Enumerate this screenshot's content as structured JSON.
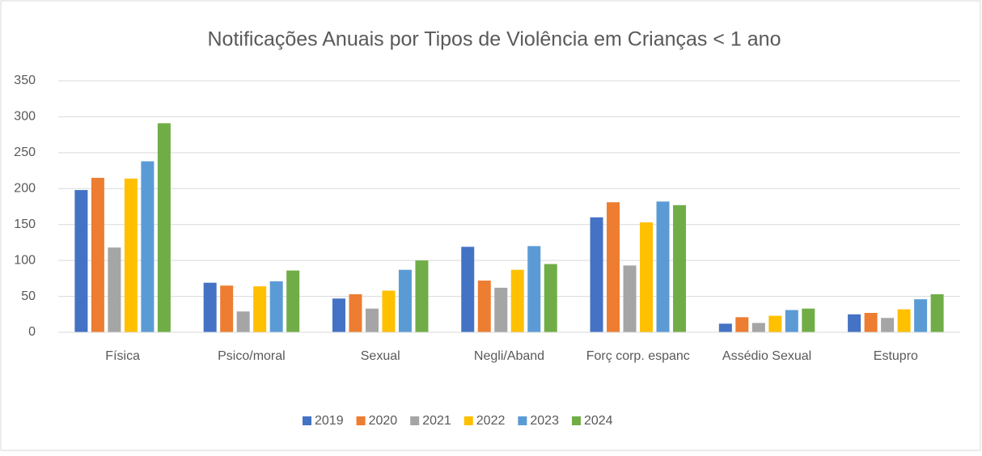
{
  "chart_data": {
    "type": "bar",
    "title": "Notificações Anuais por Tipos de Violência em Crianças < 1 ano",
    "categories": [
      "Física",
      "Psico/moral",
      "Sexual",
      "Negli/Aband",
      "Forç corp. espanc",
      "Assédio Sexual",
      "Estupro"
    ],
    "series": [
      {
        "name": "2019",
        "color": "#4472c4",
        "values": [
          198,
          69,
          47,
          119,
          160,
          12,
          25
        ]
      },
      {
        "name": "2020",
        "color": "#ed7d31",
        "values": [
          215,
          65,
          53,
          72,
          181,
          21,
          27
        ]
      },
      {
        "name": "2021",
        "color": "#a5a5a5",
        "values": [
          118,
          29,
          33,
          62,
          93,
          13,
          20
        ]
      },
      {
        "name": "2022",
        "color": "#ffc000",
        "values": [
          214,
          64,
          58,
          87,
          153,
          23,
          32
        ]
      },
      {
        "name": "2023",
        "color": "#5b9bd5",
        "values": [
          238,
          71,
          87,
          120,
          182,
          31,
          46
        ]
      },
      {
        "name": "2024",
        "color": "#70ad47",
        "values": [
          291,
          86,
          100,
          95,
          177,
          33,
          53
        ]
      }
    ],
    "ylim": [
      0,
      350
    ],
    "yticks": [
      0,
      50,
      100,
      150,
      200,
      250,
      300,
      350
    ],
    "grid": true,
    "legend": "bottom"
  }
}
